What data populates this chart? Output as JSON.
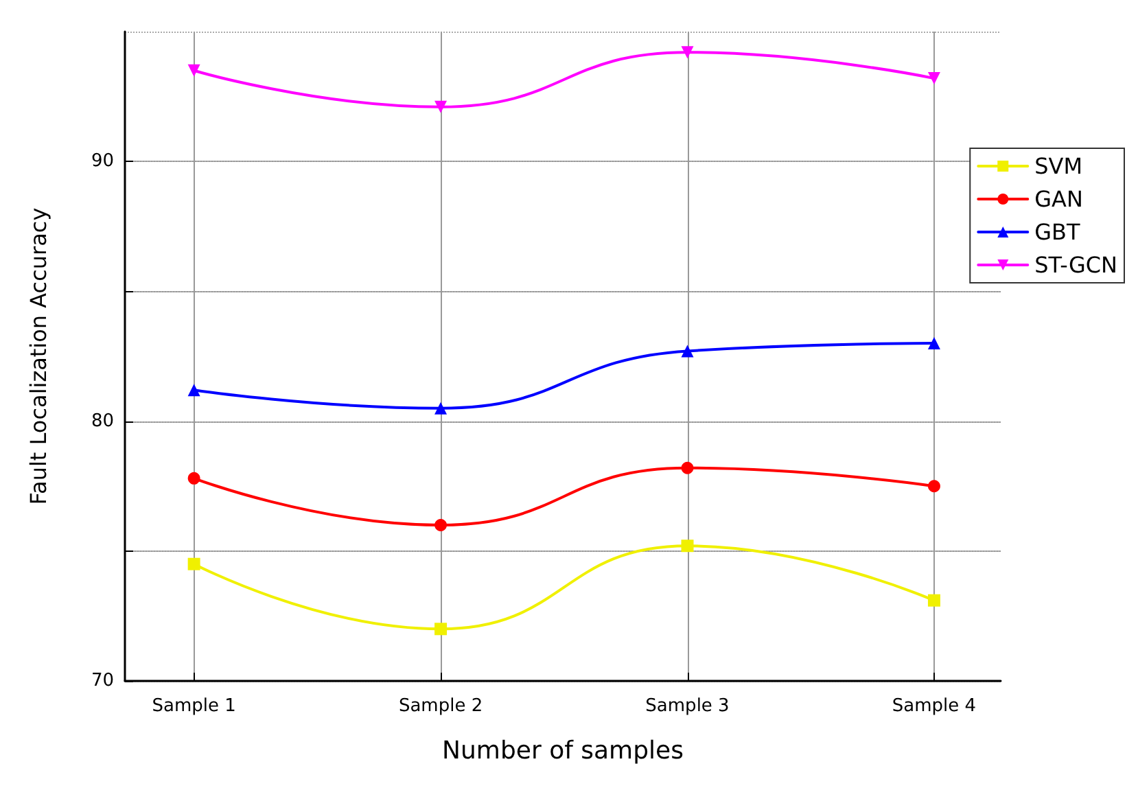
{
  "chart_data": {
    "type": "line",
    "xlabel": "Number of samples",
    "ylabel": "Fault Localization Accuracy",
    "categories": [
      "Sample 1",
      "Sample 2",
      "Sample 3",
      "Sample 4"
    ],
    "series": [
      {
        "name": "SVM",
        "color": "#f0f000",
        "marker": "square",
        "values": [
          74.5,
          72.0,
          75.2,
          73.1
        ]
      },
      {
        "name": "GAN",
        "color": "#ff0000",
        "marker": "circle",
        "values": [
          77.8,
          76.0,
          78.2,
          77.5
        ]
      },
      {
        "name": "GBT",
        "color": "#0000ff",
        "marker": "triangle",
        "values": [
          81.2,
          80.5,
          82.7,
          83.0
        ]
      },
      {
        "name": "ST-GCN",
        "color": "#ff00ff",
        "marker": "triangle",
        "values": [
          93.5,
          92.1,
          94.2,
          93.2
        ]
      }
    ],
    "ylim": [
      70,
      95
    ],
    "yticks": [
      70,
      {
        "value": 75,
        "label": null
      },
      80,
      {
        "value": 85,
        "label": null
      },
      90
    ],
    "grid": true,
    "legend": "top right",
    "line_style": "solid"
  }
}
